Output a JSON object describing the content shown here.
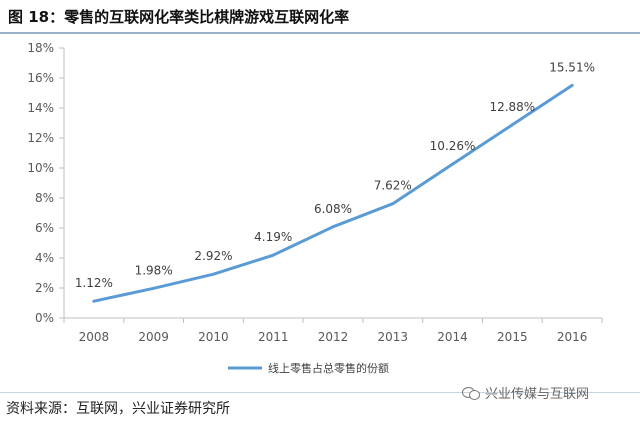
{
  "header": {
    "title": "图 18：零售的互联网化率类比棋牌游戏互联网化率"
  },
  "footer": {
    "source": "资料来源：互联网，兴业证券研究所",
    "watermark": "兴业传媒与互联网"
  },
  "colors": {
    "series": "#5b9bd5",
    "axis": "#bfbfbf",
    "text": "#595959"
  },
  "chart_data": {
    "type": "line",
    "title": "",
    "xlabel": "",
    "ylabel": "",
    "categories": [
      "2008",
      "2009",
      "2010",
      "2011",
      "2012",
      "2013",
      "2014",
      "2015",
      "2016"
    ],
    "series": [
      {
        "name": "线上零售占总零售的份额",
        "values": [
          1.12,
          1.98,
          2.92,
          4.19,
          6.08,
          7.62,
          10.26,
          12.88,
          15.51
        ],
        "labels": [
          "1.12%",
          "1.98%",
          "2.92%",
          "4.19%",
          "6.08%",
          "7.62%",
          "10.26%",
          "12.88%",
          "15.51%"
        ]
      }
    ],
    "ylim": [
      0,
      18
    ],
    "yticks": [
      "0%",
      "2%",
      "4%",
      "6%",
      "8%",
      "10%",
      "12%",
      "14%",
      "16%",
      "18%"
    ],
    "grid": false,
    "legend": "bottom"
  }
}
